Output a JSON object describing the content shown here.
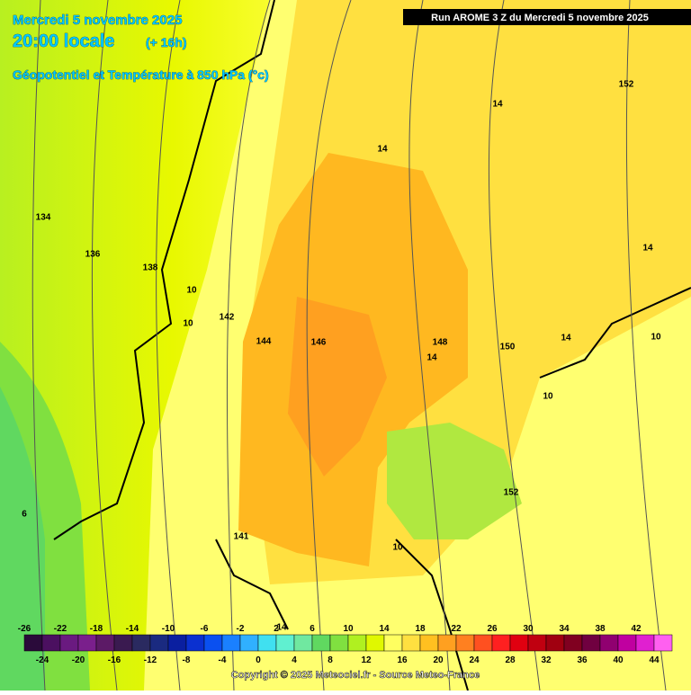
{
  "header": {
    "date": "Mercredi 5 novembre 2025",
    "time": "20:00 locale",
    "lead": "(+ 16h)",
    "subtitle": "Géopotentiel et Température à 850 hPa (°c)",
    "run": "Run AROME 3 Z du Mercredi 5 novembre 2025"
  },
  "contour_labels": [
    134,
    136,
    138,
    142,
    144,
    146,
    148,
    150,
    152,
    152,
    14,
    14,
    14,
    14,
    14,
    10,
    10,
    10,
    10,
    10,
    6,
    141,
    14
  ],
  "colorbar": {
    "top_labels": [
      -26,
      -22,
      -18,
      -14,
      -10,
      -6,
      -2,
      2,
      6,
      10,
      14,
      18,
      22,
      26,
      30,
      34,
      38,
      42
    ],
    "bottom_labels": [
      -24,
      -20,
      -16,
      -12,
      -8,
      -4,
      0,
      4,
      8,
      12,
      16,
      20,
      24,
      28,
      32,
      36,
      40,
      44
    ],
    "colors": [
      "#2a0a3a",
      "#4b1060",
      "#6a1a80",
      "#7a1f8c",
      "#5c1a66",
      "#3a1a50",
      "#2a2a60",
      "#1a2a80",
      "#0a1fa0",
      "#0a30d0",
      "#0a50f0",
      "#1a80ff",
      "#30b0ff",
      "#40e0f0",
      "#60f0d0",
      "#70e8a0",
      "#60d860",
      "#80e040",
      "#b0f020",
      "#e0f800",
      "#ffff60",
      "#ffe040",
      "#ffc020",
      "#ffa020",
      "#ff8020",
      "#ff5020",
      "#ff2020",
      "#e00010",
      "#c00010",
      "#a00010",
      "#800020",
      "#700040",
      "#900070",
      "#c000a0",
      "#e020d0",
      "#ff60f0"
    ]
  },
  "footer": {
    "copyright": "Copyright © 2025 Meteociel.fr - Source Meteo-France"
  }
}
